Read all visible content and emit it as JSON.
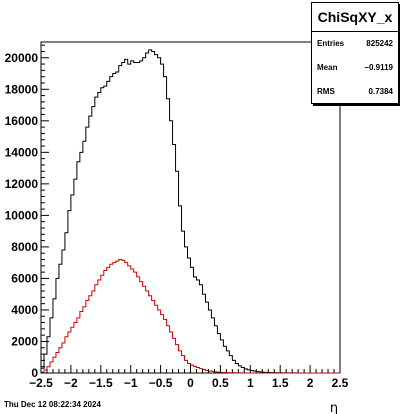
{
  "stats": {
    "title": "ChiSqXY_x",
    "rows": [
      {
        "label": "Entries",
        "value": "825242"
      },
      {
        "label": "Mean",
        "value": "−0.9119"
      },
      {
        "label": "RMS",
        "value": "0.7384"
      }
    ]
  },
  "footer": {
    "timestamp": "Thu Dec 12 08:22:34 2024"
  },
  "chart_data": {
    "type": "histogram",
    "title": "",
    "xlabel": "η",
    "ylabel": "",
    "xlim": [
      -2.5,
      2.5
    ],
    "ylim": [
      0,
      21000
    ],
    "x_ticks": [
      -2.5,
      -2,
      -1.5,
      -1,
      -0.5,
      0,
      0.5,
      1,
      1.5,
      2,
      2.5
    ],
    "x_tick_labels": [
      "−2.5",
      "−2",
      "−1.5",
      "−1",
      "−0.5",
      "0",
      "0.5",
      "1",
      "1.5",
      "2",
      "2.5"
    ],
    "y_ticks": [
      0,
      2000,
      4000,
      6000,
      8000,
      10000,
      12000,
      14000,
      16000,
      18000,
      20000
    ],
    "grid": false,
    "bin_width": 0.05,
    "series": [
      {
        "color": "#000000",
        "x": [
          -2.5,
          -2.45,
          -2.4,
          -2.35,
          -2.3,
          -2.25,
          -2.2,
          -2.15,
          -2.1,
          -2.05,
          -2.0,
          -1.95,
          -1.9,
          -1.85,
          -1.8,
          -1.75,
          -1.7,
          -1.65,
          -1.6,
          -1.55,
          -1.5,
          -1.45,
          -1.4,
          -1.35,
          -1.3,
          -1.25,
          -1.2,
          -1.15,
          -1.1,
          -1.05,
          -1.0,
          -0.95,
          -0.9,
          -0.85,
          -0.8,
          -0.75,
          -0.7,
          -0.65,
          -0.6,
          -0.55,
          -0.5,
          -0.45,
          -0.4,
          -0.35,
          -0.3,
          -0.25,
          -0.2,
          -0.15,
          -0.1,
          -0.05,
          0.0,
          0.05,
          0.1,
          0.15,
          0.2,
          0.25,
          0.3,
          0.35,
          0.4,
          0.45,
          0.5,
          0.55,
          0.6,
          0.65,
          0.7,
          0.75,
          0.8,
          0.85,
          0.9,
          0.95,
          1.0,
          1.05,
          1.1,
          1.15,
          1.2,
          1.25,
          1.3,
          1.35,
          1.4,
          1.45,
          1.5,
          1.55,
          1.6,
          1.65,
          1.7,
          1.75,
          1.8,
          1.85,
          1.9,
          1.95,
          2.0,
          2.05,
          2.1,
          2.15,
          2.2,
          2.25,
          2.3,
          2.35,
          2.4,
          2.45
        ],
        "values": [
          300,
          1200,
          2300,
          3500,
          4700,
          6000,
          6900,
          7800,
          8900,
          10300,
          11300,
          12300,
          13400,
          14000,
          14700,
          15600,
          16300,
          16900,
          17500,
          17800,
          18100,
          18200,
          18500,
          18800,
          19000,
          19100,
          19500,
          19700,
          19900,
          19600,
          19800,
          19700,
          19700,
          19800,
          20000,
          20300,
          20500,
          20400,
          20200,
          20000,
          19600,
          18800,
          17400,
          16000,
          14500,
          12800,
          10600,
          9000,
          8000,
          7300,
          6700,
          6100,
          5900,
          5600,
          5000,
          4500,
          4000,
          3500,
          3000,
          2500,
          2100,
          1700,
          1400,
          1100,
          800,
          600,
          450,
          350,
          260,
          200,
          160,
          120,
          90,
          70,
          50,
          40,
          30,
          25,
          20,
          15,
          12,
          10,
          8,
          6,
          5,
          4,
          3,
          3,
          2,
          2,
          1,
          1,
          1,
          1,
          0,
          0,
          0,
          0,
          0,
          0
        ]
      },
      {
        "color": "#d20000",
        "x": [
          -2.5,
          -2.45,
          -2.4,
          -2.35,
          -2.3,
          -2.25,
          -2.2,
          -2.15,
          -2.1,
          -2.05,
          -2.0,
          -1.95,
          -1.9,
          -1.85,
          -1.8,
          -1.75,
          -1.7,
          -1.65,
          -1.6,
          -1.55,
          -1.5,
          -1.45,
          -1.4,
          -1.35,
          -1.3,
          -1.25,
          -1.2,
          -1.15,
          -1.1,
          -1.05,
          -1.0,
          -0.95,
          -0.9,
          -0.85,
          -0.8,
          -0.75,
          -0.7,
          -0.65,
          -0.6,
          -0.55,
          -0.5,
          -0.45,
          -0.4,
          -0.35,
          -0.3,
          -0.25,
          -0.2,
          -0.15,
          -0.1,
          -0.05,
          0.0,
          0.05,
          0.1,
          0.15,
          0.2,
          0.25,
          0.3,
          0.35,
          0.4,
          0.45,
          0.5,
          0.55,
          0.6,
          0.65,
          0.7,
          0.75,
          0.8,
          0.85,
          0.9,
          0.95,
          1.0,
          1.05,
          1.1,
          1.15,
          1.2,
          1.25,
          1.3,
          1.35,
          1.4,
          1.45,
          1.5,
          1.55,
          1.6,
          1.65,
          1.7,
          1.75,
          1.8,
          1.85,
          1.9,
          1.95,
          2.0,
          2.05,
          2.1,
          2.15,
          2.2,
          2.25,
          2.3,
          2.35,
          2.4,
          2.45
        ],
        "values": [
          50,
          200,
          400,
          700,
          1000,
          1300,
          1600,
          1900,
          2300,
          2600,
          2900,
          3200,
          3500,
          3900,
          4200,
          4600,
          4900,
          5200,
          5600,
          5900,
          6200,
          6500,
          6700,
          6900,
          7000,
          7100,
          7200,
          7150,
          7000,
          6800,
          6600,
          6400,
          6100,
          5800,
          5500,
          5200,
          4900,
          4600,
          4300,
          4000,
          3700,
          3400,
          3000,
          2600,
          2200,
          1800,
          1400,
          1100,
          800,
          600,
          500,
          420,
          350,
          280,
          220,
          170,
          130,
          100,
          75,
          55,
          40,
          30,
          22,
          16,
          12,
          8,
          6,
          4,
          3,
          2,
          1,
          1,
          1,
          0,
          0,
          0,
          0,
          0,
          0,
          0,
          0,
          0,
          0,
          0,
          0,
          0,
          0,
          0,
          0,
          0,
          0,
          0,
          0,
          0,
          0,
          0,
          0,
          0,
          0,
          0
        ]
      }
    ]
  }
}
